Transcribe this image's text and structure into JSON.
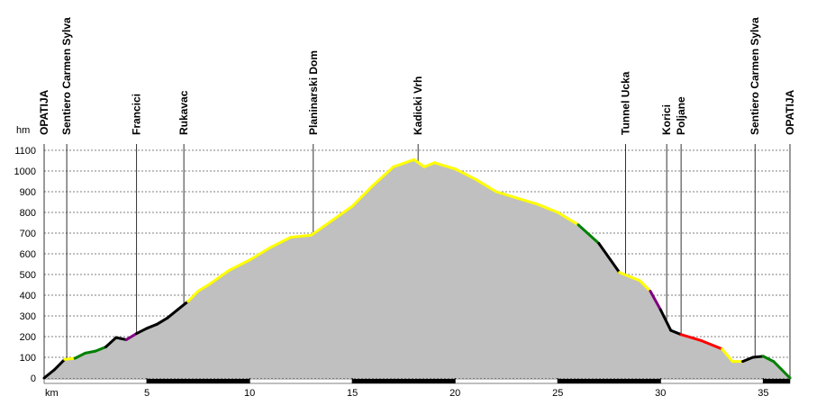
{
  "chart_data": {
    "type": "elevation-profile",
    "y_axis_label": "hm",
    "x_axis_label": "km",
    "xlim": [
      0,
      36.3
    ],
    "ylim": [
      0,
      1100
    ],
    "xticks": [
      5,
      10,
      15,
      20,
      25,
      30,
      35
    ],
    "yticks": [
      0,
      100,
      200,
      300,
      400,
      500,
      600,
      700,
      800,
      900,
      1000,
      1100
    ],
    "grid": true,
    "fill_color": "#c0c0c0",
    "x": [
      0,
      0.5,
      1.0,
      1.5,
      2.0,
      2.5,
      3.0,
      3.5,
      4.0,
      4.5,
      5.0,
      5.5,
      6.0,
      6.5,
      7.0,
      7.5,
      8.0,
      9.0,
      10.0,
      11.0,
      12.0,
      13.0,
      14.0,
      15.0,
      16.0,
      17.0,
      18.0,
      18.5,
      19.0,
      20.0,
      21.0,
      22.0,
      23.0,
      24.0,
      25.0,
      26.0,
      27.0,
      28.0,
      29.0,
      29.5,
      30.0,
      30.5,
      31.0,
      32.0,
      33.0,
      33.5,
      34.0,
      34.5,
      35.0,
      35.5,
      36.3
    ],
    "values": [
      0,
      40,
      90,
      95,
      120,
      130,
      150,
      195,
      185,
      215,
      240,
      260,
      290,
      330,
      370,
      420,
      450,
      520,
      570,
      630,
      680,
      690,
      760,
      830,
      930,
      1020,
      1055,
      1020,
      1040,
      1010,
      960,
      900,
      870,
      840,
      800,
      740,
      650,
      510,
      470,
      420,
      330,
      230,
      210,
      180,
      140,
      80,
      80,
      100,
      105,
      80,
      0
    ],
    "segment_colors": [
      "#000000",
      "#000000",
      "#ffff00",
      "#008000",
      "#008000",
      "#008000",
      "#000000",
      "#000000",
      "#800080",
      "#000000",
      "#000000",
      "#000000",
      "#000000",
      "#000000",
      "#ffff00",
      "#ffff00",
      "#ffff00",
      "#ffff00",
      "#ffff00",
      "#ffff00",
      "#ffff00",
      "#ffff00",
      "#ffff00",
      "#ffff00",
      "#ffff00",
      "#ffff00",
      "#ffff00",
      "#ffff00",
      "#ffff00",
      "#ffff00",
      "#ffff00",
      "#ffff00",
      "#ffff00",
      "#ffff00",
      "#ffff00",
      "#008000",
      "#000000",
      "#ffff00",
      "#ffff00",
      "#800080",
      "#000000",
      "#000000",
      "#ff0000",
      "#ff0000",
      "#ffff00",
      "#ffff00",
      "#000000",
      "#000000",
      "#008000",
      "#008000"
    ],
    "waypoints": [
      {
        "label": "OPATIJA",
        "km": 0
      },
      {
        "label": "Sentiero Carmen Sylva",
        "km": 1.1
      },
      {
        "label": "Francici",
        "km": 4.5
      },
      {
        "label": "Rukavac",
        "km": 6.8
      },
      {
        "label": "Planinarski Dom",
        "km": 13.1
      },
      {
        "label": "Kadicki Vrh",
        "km": 18.2
      },
      {
        "label": "Tunnel Ucka",
        "km": 28.3
      },
      {
        "label": "Korici",
        "km": 30.3
      },
      {
        "label": "Poljane",
        "km": 31.0
      },
      {
        "label": "Sentiero Carmen Sylva",
        "km": 34.6
      },
      {
        "label": "OPATIJA",
        "km": 36.3
      }
    ]
  }
}
